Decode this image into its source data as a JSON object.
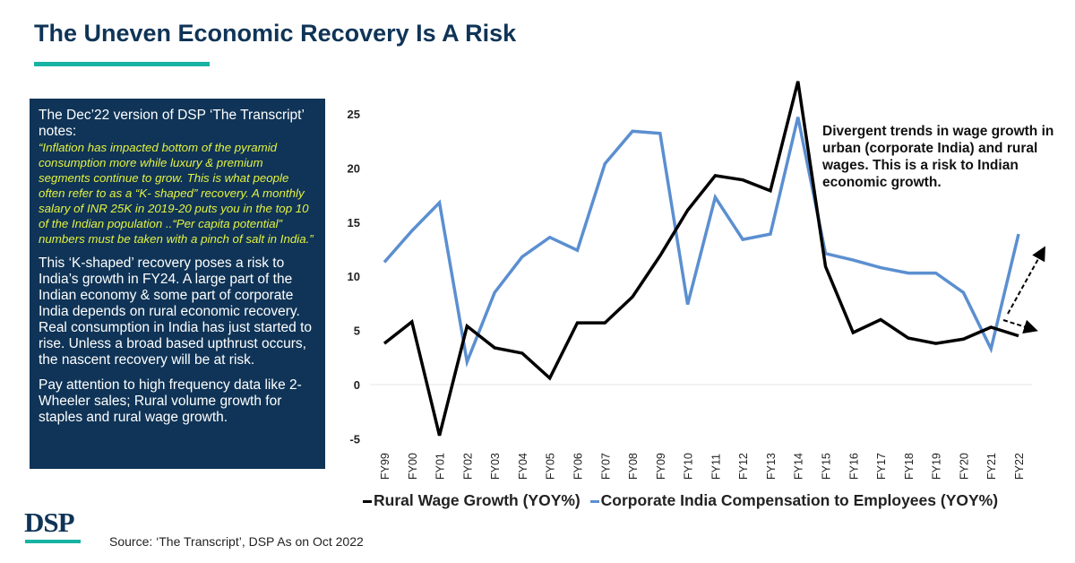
{
  "header": {
    "title": "The Uneven Economic Recovery Is A Risk"
  },
  "notes": {
    "intro": "The Dec’22 version of DSP ‘The Transcript’ notes:",
    "quote": "“Inflation has impacted bottom of the pyramid consumption more while luxury & premium segments continue to grow. This is what people often refer to as a “K- shaped” recovery. A monthly salary of INR 25K in 2019-20 puts you in the top 10 of the Indian population ..“Per capita potential” numbers must be taken with a pinch of salt in India.”",
    "para1": "This ‘K-shaped’ recovery poses a risk to India’s growth in FY24. A large part of the Indian economy & some part of corporate India depends on rural economic recovery. Real consumption in India has just started to rise. Unless a broad based upthrust occurs, the nascent recovery will be at risk.",
    "para2": "Pay attention to high frequency data like 2-Wheeler sales; Rural volume growth for staples and rural wage growth."
  },
  "chart_data": {
    "type": "line",
    "title": "",
    "xlabel": "",
    "ylabel": "",
    "ylim": [
      -5,
      25
    ],
    "yticks": [
      -5,
      0,
      5,
      10,
      15,
      20,
      25
    ],
    "categories": [
      "FY99",
      "FY00",
      "FY01",
      "FY02",
      "FY03",
      "FY04",
      "FY05",
      "FY06",
      "FY07",
      "FY08",
      "FY09",
      "FY10",
      "FY11",
      "FY12",
      "FY13",
      "FY14",
      "FY15",
      "FY16",
      "FY17",
      "FY18",
      "FY19",
      "FY20",
      "FY21",
      "FY22"
    ],
    "series": [
      {
        "name": "Rural Wage Growth (YOY%)",
        "color": "#000000",
        "values": [
          3.8,
          5.8,
          -4.7,
          5.4,
          3.4,
          2.9,
          0.6,
          5.7,
          5.7,
          8.1,
          11.9,
          16.1,
          19.3,
          18.9,
          17.9,
          28.0,
          10.9,
          4.8,
          6.0,
          4.3,
          3.8,
          4.2,
          5.3,
          4.5
        ]
      },
      {
        "name": "Corporate India Compensation to Employees (YOY%)",
        "color": "#5b8fd0",
        "values": [
          11.3,
          14.2,
          16.8,
          2.1,
          8.5,
          11.8,
          13.6,
          12.4,
          20.4,
          23.4,
          23.2,
          7.4,
          17.3,
          13.4,
          13.9,
          24.7,
          12.1,
          11.5,
          10.8,
          10.3,
          10.3,
          8.5,
          3.3,
          13.9
        ]
      }
    ],
    "annotation": "Divergent trends in wage growth in urban (corporate India) and rural wages. This is a risk to Indian economic growth.",
    "legend_position": "bottom",
    "grid": false
  },
  "legend": {
    "rural": "Rural Wage Growth (YOY%)",
    "corporate": "Corporate India Compensation to Employees (YOY%)"
  },
  "footer": {
    "logo": "DSP",
    "source": "Source: ‘The Transcript’, DSP As on Oct 2022"
  }
}
